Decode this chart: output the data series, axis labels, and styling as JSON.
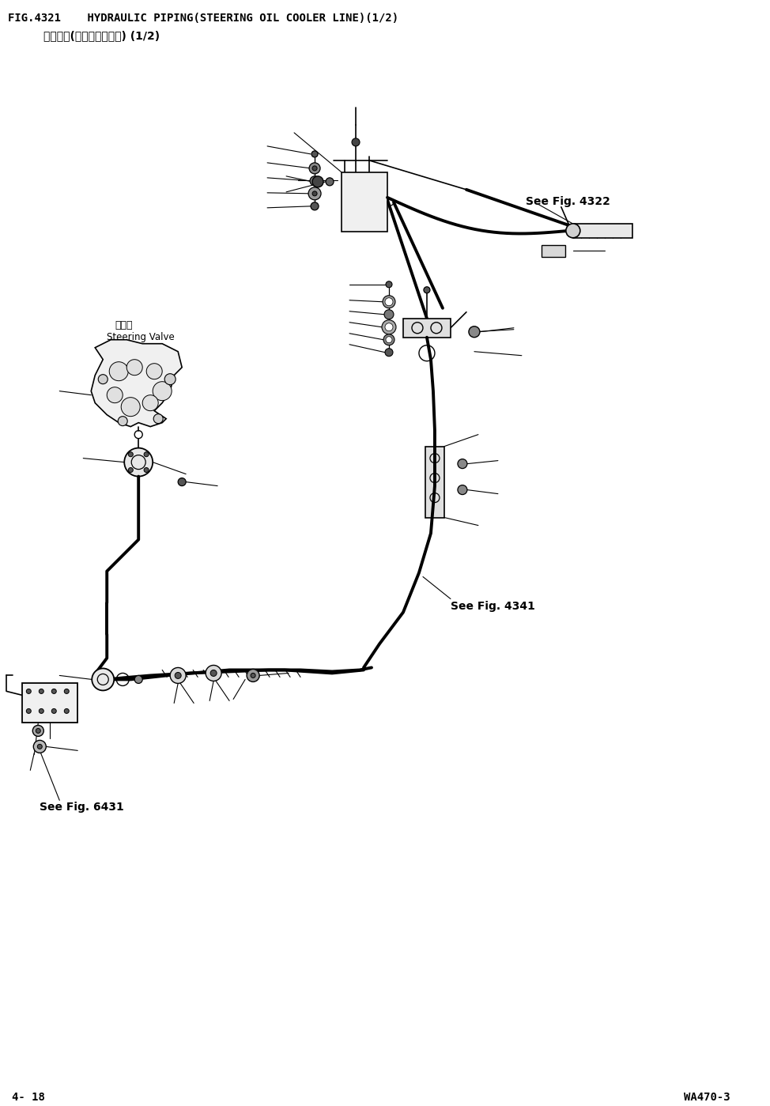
{
  "title_line1": "FIG.4321    HYDRAULIC PIPING(STEERING OIL COOLER LINE)(1/2)",
  "title_line2": "油压管路(转向油冷却回路) (1/2)",
  "footer_left": "4- 18",
  "footer_right": "WA470-3",
  "see_fig_4322": "See Fig. 4322",
  "see_fig_4341": "See Fig. 4341",
  "see_fig_6431": "See Fig. 6431",
  "steering_valve_cn": "转向阀",
  "steering_valve_en": "Steering Valve",
  "bg_color": "#ffffff",
  "line_color": "#000000",
  "fig_width": 9.74,
  "fig_height": 13.99,
  "dpi": 100
}
